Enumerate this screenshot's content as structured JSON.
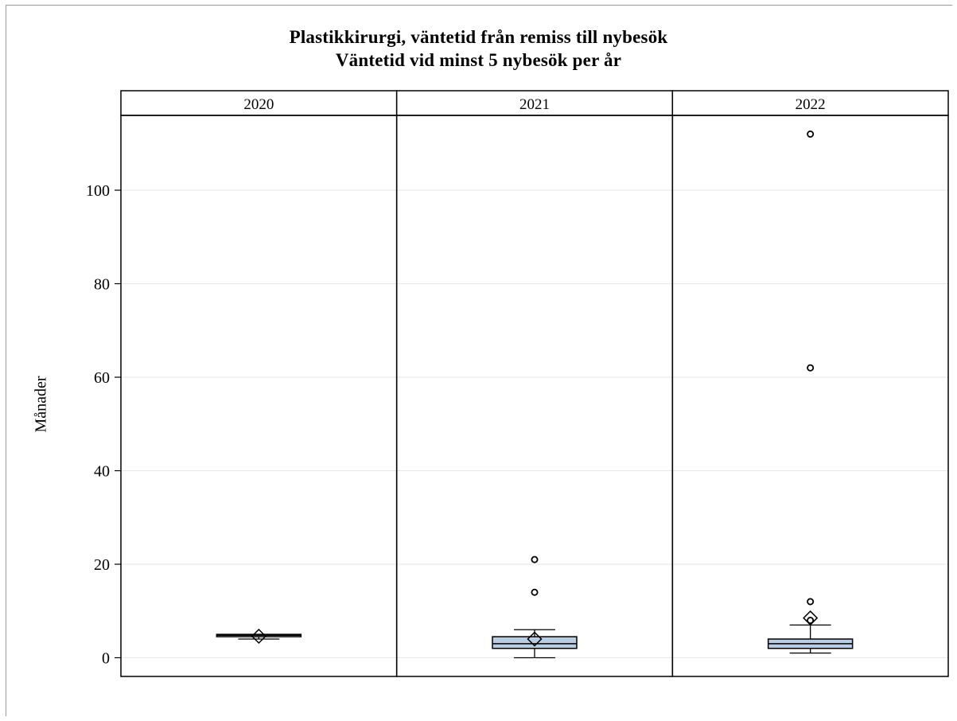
{
  "chart_data": {
    "type": "boxplot",
    "title": "Plastikkirurgi, väntetid från remiss till nybesök",
    "subtitle": "Väntetid vid minst 5 nybesök per år",
    "xlabel": "",
    "ylabel": "Månader",
    "ylim": [
      -4,
      116
    ],
    "yticks": [
      0,
      20,
      40,
      60,
      80,
      100
    ],
    "grid": true,
    "panels": [
      {
        "label": "2020",
        "min": 4,
        "q1": 4.5,
        "median": 4.8,
        "q3": 5,
        "max": 5,
        "mean": 4.6,
        "outliers": []
      },
      {
        "label": "2021",
        "min": 0,
        "q1": 2,
        "median": 3,
        "q3": 4.5,
        "max": 6,
        "mean": 4,
        "outliers": [
          14,
          21
        ]
      },
      {
        "label": "2022",
        "min": 1,
        "q1": 2,
        "median": 3,
        "q3": 4,
        "max": 7,
        "mean": 8.5,
        "outliers": [
          8,
          12,
          62,
          112
        ]
      }
    ],
    "colors": {
      "box_fill": "#b8cce4",
      "grid": "#e6e6e6",
      "stroke": "#000000"
    }
  }
}
